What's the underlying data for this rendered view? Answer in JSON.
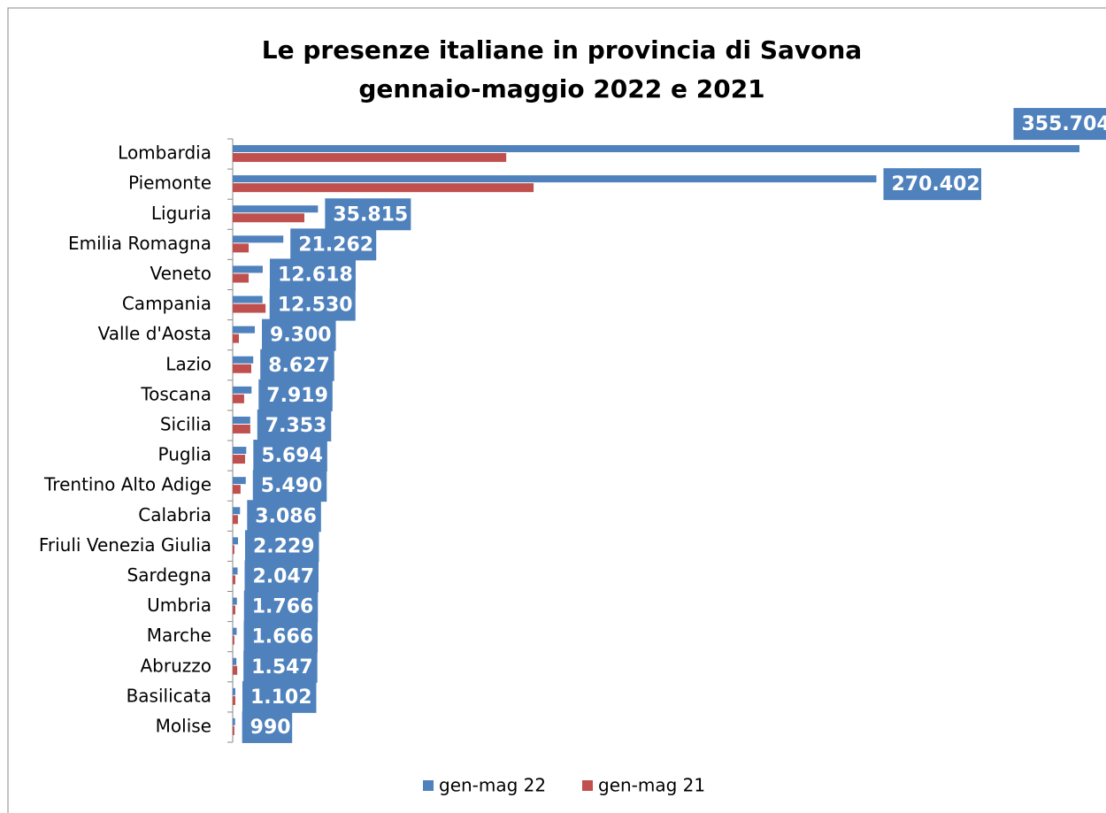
{
  "chart_data": {
    "type": "hbar",
    "title": "Le presenze italiane in provincia di Savona",
    "subtitle": "gennaio-maggio 2022 e 2021",
    "categories": [
      "Lombardia",
      "Piemonte",
      "Liguria",
      "Emilia Romagna",
      "Veneto",
      "Campania",
      "Valle d'Aosta",
      "Lazio",
      "Toscana",
      "Sicilia",
      "Puglia",
      "Trentino Alto Adige",
      "Calabria",
      "Friuli Venezia Giulia",
      "Sardegna",
      "Umbria",
      "Marche",
      "Abruzzo",
      "Basilicata",
      "Molise"
    ],
    "series": [
      {
        "name": "gen-mag 22",
        "color": "#4f81bd",
        "values": [
          355704,
          270402,
          35815,
          21262,
          12618,
          12530,
          9300,
          8627,
          7919,
          7353,
          5694,
          5490,
          3086,
          2229,
          2047,
          1766,
          1666,
          1547,
          1102,
          990
        ],
        "value_labels": [
          "355.704",
          "270.402",
          "35.815",
          "21.262",
          "12.618",
          "12.530",
          "9.300",
          "8.627",
          "7.919",
          "7.353",
          "5.694",
          "5.490",
          "3.086",
          "2.229",
          "2.047",
          "1.766",
          "1.666",
          "1.547",
          "1.102",
          "990"
        ]
      },
      {
        "name": "gen-mag 21",
        "color": "#c0504d",
        "values": [
          114900,
          126400,
          30100,
          6700,
          6700,
          13800,
          2600,
          7800,
          4800,
          7400,
          5200,
          3300,
          2200,
          700,
          1100,
          1100,
          700,
          1900,
          1100,
          700
        ]
      }
    ],
    "legend": "bottom"
  }
}
